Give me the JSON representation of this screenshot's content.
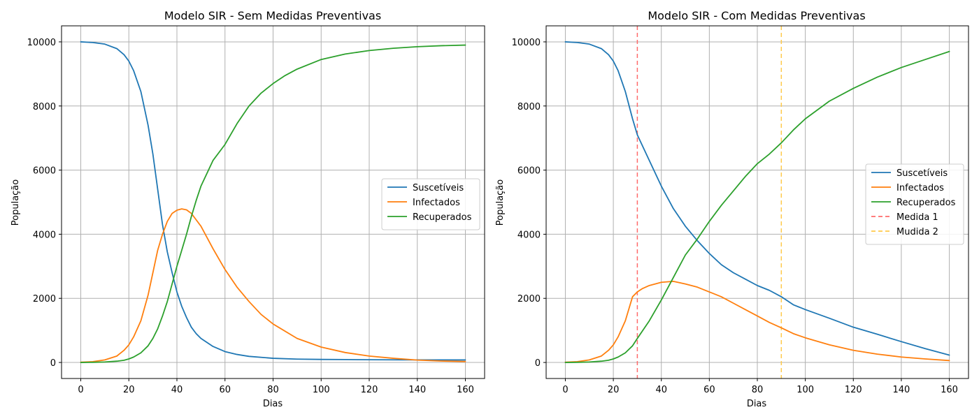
{
  "colors": {
    "susceptible": "#1f77b4",
    "infected": "#ff7f0e",
    "recovered": "#2ca02c",
    "measure1": "#ff6b6b",
    "measure2": "#ffc94a",
    "grid": "#b0b0b0",
    "axis": "#000000"
  },
  "chart_data": [
    {
      "type": "line",
      "title": "Modelo SIR - Sem Medidas Preventivas",
      "xlabel": "Dias",
      "ylabel": "População",
      "xlim": [
        -8,
        168
      ],
      "ylim": [
        -500,
        10500
      ],
      "xticks": [
        0,
        20,
        40,
        60,
        80,
        100,
        120,
        140,
        160
      ],
      "yticks": [
        0,
        2000,
        4000,
        6000,
        8000,
        10000
      ],
      "grid": true,
      "legend_position": "center-right",
      "series": [
        {
          "name": "Suscetíveis",
          "color_key": "susceptible",
          "points": [
            [
              0,
              10000
            ],
            [
              5,
              9980
            ],
            [
              10,
              9930
            ],
            [
              15,
              9790
            ],
            [
              18,
              9600
            ],
            [
              20,
              9400
            ],
            [
              22,
              9100
            ],
            [
              25,
              8450
            ],
            [
              28,
              7400
            ],
            [
              30,
              6500
            ],
            [
              32,
              5400
            ],
            [
              34,
              4300
            ],
            [
              36,
              3450
            ],
            [
              38,
              2800
            ],
            [
              40,
              2200
            ],
            [
              42,
              1750
            ],
            [
              44,
              1400
            ],
            [
              46,
              1100
            ],
            [
              48,
              900
            ],
            [
              50,
              750
            ],
            [
              55,
              500
            ],
            [
              60,
              340
            ],
            [
              65,
              250
            ],
            [
              70,
              190
            ],
            [
              80,
              130
            ],
            [
              90,
              105
            ],
            [
              100,
              95
            ],
            [
              110,
              90
            ],
            [
              120,
              85
            ],
            [
              140,
              80
            ],
            [
              160,
              78
            ]
          ]
        },
        {
          "name": "Infectados",
          "color_key": "infected",
          "points": [
            [
              0,
              10
            ],
            [
              5,
              25
            ],
            [
              10,
              80
            ],
            [
              15,
              200
            ],
            [
              18,
              380
            ],
            [
              20,
              550
            ],
            [
              22,
              800
            ],
            [
              25,
              1300
            ],
            [
              28,
              2100
            ],
            [
              30,
              2800
            ],
            [
              32,
              3500
            ],
            [
              34,
              4000
            ],
            [
              36,
              4400
            ],
            [
              38,
              4650
            ],
            [
              40,
              4750
            ],
            [
              42,
              4790
            ],
            [
              44,
              4760
            ],
            [
              46,
              4650
            ],
            [
              48,
              4450
            ],
            [
              50,
              4250
            ],
            [
              55,
              3550
            ],
            [
              60,
              2900
            ],
            [
              65,
              2350
            ],
            [
              70,
              1900
            ],
            [
              75,
              1500
            ],
            [
              80,
              1200
            ],
            [
              90,
              750
            ],
            [
              100,
              480
            ],
            [
              110,
              310
            ],
            [
              120,
              200
            ],
            [
              130,
              130
            ],
            [
              140,
              75
            ],
            [
              150,
              45
            ],
            [
              160,
              30
            ]
          ]
        },
        {
          "name": "Recuperados",
          "color_key": "recovered",
          "points": [
            [
              0,
              0
            ],
            [
              5,
              5
            ],
            [
              10,
              15
            ],
            [
              15,
              40
            ],
            [
              18,
              70
            ],
            [
              20,
              110
            ],
            [
              22,
              170
            ],
            [
              25,
              300
            ],
            [
              28,
              520
            ],
            [
              30,
              750
            ],
            [
              32,
              1050
            ],
            [
              34,
              1450
            ],
            [
              36,
              1900
            ],
            [
              38,
              2450
            ],
            [
              40,
              3000
            ],
            [
              42,
              3500
            ],
            [
              44,
              4000
            ],
            [
              46,
              4550
            ],
            [
              48,
              5050
            ],
            [
              50,
              5500
            ],
            [
              55,
              6300
            ],
            [
              60,
              6800
            ],
            [
              65,
              7450
            ],
            [
              70,
              8000
            ],
            [
              75,
              8400
            ],
            [
              80,
              8700
            ],
            [
              85,
              8950
            ],
            [
              90,
              9150
            ],
            [
              100,
              9450
            ],
            [
              110,
              9620
            ],
            [
              120,
              9730
            ],
            [
              130,
              9800
            ],
            [
              140,
              9850
            ],
            [
              150,
              9880
            ],
            [
              160,
              9900
            ]
          ]
        }
      ]
    },
    {
      "type": "line",
      "title": "Modelo SIR - Com Medidas Preventivas",
      "xlabel": "Dias",
      "ylabel": "População",
      "xlim": [
        -8,
        168
      ],
      "ylim": [
        -500,
        10500
      ],
      "xticks": [
        0,
        20,
        40,
        60,
        80,
        100,
        120,
        140,
        160
      ],
      "yticks": [
        0,
        2000,
        4000,
        6000,
        8000,
        10000
      ],
      "grid": true,
      "legend_position": "center-right",
      "series": [
        {
          "name": "Suscetíveis",
          "color_key": "susceptible",
          "points": [
            [
              0,
              10000
            ],
            [
              5,
              9980
            ],
            [
              10,
              9930
            ],
            [
              15,
              9790
            ],
            [
              18,
              9600
            ],
            [
              20,
              9400
            ],
            [
              22,
              9100
            ],
            [
              25,
              8450
            ],
            [
              28,
              7600
            ],
            [
              30,
              7100
            ],
            [
              35,
              6300
            ],
            [
              40,
              5500
            ],
            [
              45,
              4800
            ],
            [
              50,
              4250
            ],
            [
              55,
              3800
            ],
            [
              60,
              3400
            ],
            [
              65,
              3050
            ],
            [
              70,
              2800
            ],
            [
              75,
              2600
            ],
            [
              80,
              2400
            ],
            [
              85,
              2250
            ],
            [
              90,
              2050
            ],
            [
              95,
              1800
            ],
            [
              100,
              1650
            ],
            [
              110,
              1380
            ],
            [
              120,
              1100
            ],
            [
              130,
              880
            ],
            [
              140,
              650
            ],
            [
              150,
              430
            ],
            [
              160,
              230
            ]
          ]
        },
        {
          "name": "Infectados",
          "color_key": "infected",
          "points": [
            [
              0,
              10
            ],
            [
              5,
              25
            ],
            [
              10,
              80
            ],
            [
              15,
              200
            ],
            [
              18,
              380
            ],
            [
              20,
              550
            ],
            [
              22,
              800
            ],
            [
              25,
              1300
            ],
            [
              27,
              1800
            ],
            [
              28,
              2050
            ],
            [
              30,
              2200
            ],
            [
              32,
              2300
            ],
            [
              35,
              2400
            ],
            [
              40,
              2500
            ],
            [
              45,
              2530
            ],
            [
              50,
              2450
            ],
            [
              55,
              2350
            ],
            [
              60,
              2200
            ],
            [
              65,
              2050
            ],
            [
              70,
              1850
            ],
            [
              75,
              1650
            ],
            [
              80,
              1450
            ],
            [
              85,
              1250
            ],
            [
              90,
              1080
            ],
            [
              95,
              900
            ],
            [
              100,
              770
            ],
            [
              110,
              550
            ],
            [
              120,
              380
            ],
            [
              130,
              260
            ],
            [
              140,
              170
            ],
            [
              150,
              110
            ],
            [
              160,
              60
            ]
          ]
        },
        {
          "name": "Recuperados",
          "color_key": "recovered",
          "points": [
            [
              0,
              0
            ],
            [
              5,
              5
            ],
            [
              10,
              15
            ],
            [
              15,
              40
            ],
            [
              18,
              70
            ],
            [
              20,
              110
            ],
            [
              22,
              170
            ],
            [
              25,
              300
            ],
            [
              28,
              520
            ],
            [
              30,
              750
            ],
            [
              35,
              1300
            ],
            [
              40,
              1950
            ],
            [
              45,
              2650
            ],
            [
              50,
              3350
            ],
            [
              55,
              3850
            ],
            [
              60,
              4400
            ],
            [
              65,
              4900
            ],
            [
              70,
              5350
            ],
            [
              75,
              5800
            ],
            [
              80,
              6200
            ],
            [
              85,
              6500
            ],
            [
              90,
              6850
            ],
            [
              95,
              7250
            ],
            [
              100,
              7600
            ],
            [
              110,
              8150
            ],
            [
              120,
              8550
            ],
            [
              130,
              8900
            ],
            [
              140,
              9200
            ],
            [
              150,
              9450
            ],
            [
              160,
              9700
            ]
          ]
        }
      ],
      "vlines": [
        {
          "name": "Medida 1",
          "x": 30,
          "color_key": "measure1"
        },
        {
          "name": "Mudida 2",
          "x": 90,
          "color_key": "measure2"
        }
      ]
    }
  ]
}
